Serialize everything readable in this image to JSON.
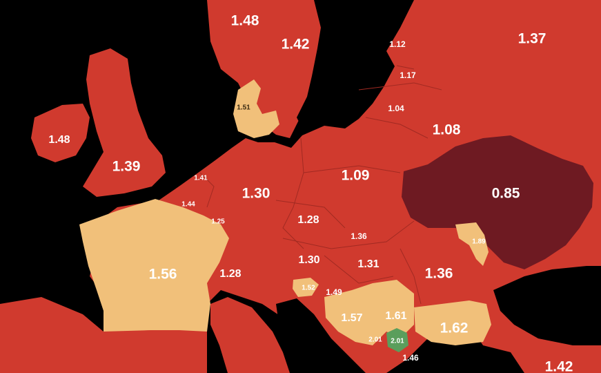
{
  "colors": {
    "sea": "#000000",
    "low": "#d03a2e",
    "very_low": "#6e1a22",
    "mid": "#f1c07a",
    "high": "#5a9e5c",
    "border": "#a12a22"
  },
  "labels": {
    "norway": "1.48",
    "sweden": "1.42",
    "finland_area": "1.37",
    "estonia": "1.12",
    "latvia": "1.17",
    "lithuania": "1.04",
    "belarus": "1.08",
    "denmark": "1.51",
    "ireland": "1.48",
    "uk": "1.39",
    "netherlands": "1.41",
    "belgium": "1.44",
    "luxembourg": "1.25",
    "germany": "1.30",
    "poland": "1.09",
    "ukraine": "0.85",
    "czechia": "1.28",
    "slovakia": "1.36",
    "moldova": "1.89",
    "france": "1.56",
    "switzerland": "1.28",
    "austria": "1.30",
    "hungary": "1.31",
    "romania": "1.36",
    "slovenia": "1.52",
    "croatia": "1.49",
    "bosnia": "1.57",
    "serbia": "1.61",
    "bulgaria": "1.62",
    "montenegro": "2.01",
    "kosovo": "2.01",
    "north_macedonia": "1.46",
    "turkey_area": "1.42"
  }
}
